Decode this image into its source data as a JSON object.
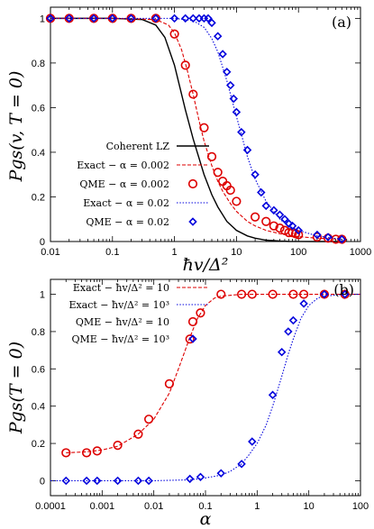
{
  "chart_data": [
    {
      "panel": "(a)",
      "type": "line",
      "xscale": "log",
      "xlim": [
        0.01,
        1000
      ],
      "ylim": [
        0,
        1.05
      ],
      "xticks": [
        0.01,
        0.1,
        1,
        10,
        100,
        1000
      ],
      "xtick_labels": [
        "0.01",
        "0.1",
        "1",
        "10",
        "100",
        "1000"
      ],
      "yticks": [
        0,
        0.2,
        0.4,
        0.6,
        0.8,
        1
      ],
      "ytick_labels": [
        "0",
        "0.2",
        "0.4",
        "0.6",
        "0.8",
        "1"
      ],
      "xlabel": "ħv/Δ²",
      "ylabel": "Pgs(v, T = 0)",
      "legend_position": "bottom-left",
      "series": [
        {
          "name": "Coherent LZ",
          "style": "line-solid",
          "color": "#000000",
          "x": [
            0.01,
            0.1,
            0.3,
            0.5,
            0.7,
            1,
            1.5,
            2,
            3,
            4,
            5,
            7,
            10,
            15,
            20,
            30,
            50,
            70,
            100,
            200,
            500
          ],
          "y": [
            1,
            1,
            0.995,
            0.97,
            0.915,
            0.79,
            0.59,
            0.46,
            0.3,
            0.21,
            0.155,
            0.09,
            0.05,
            0.025,
            0.015,
            0.006,
            0.002,
            0.0005,
            0.0002,
            0,
            0
          ]
        },
        {
          "name": "Exact − α = 0.002",
          "style": "line-dashed",
          "color": "#dd0000",
          "x": [
            0.01,
            0.1,
            0.5,
            0.8,
            1,
            1.3,
            1.6,
            2,
            2.5,
            3,
            4,
            5,
            6,
            8,
            10,
            15,
            20,
            30,
            50,
            70,
            100,
            200,
            500
          ],
          "y": [
            1,
            1,
            0.995,
            0.97,
            0.935,
            0.86,
            0.77,
            0.66,
            0.54,
            0.45,
            0.34,
            0.27,
            0.225,
            0.17,
            0.135,
            0.09,
            0.07,
            0.05,
            0.035,
            0.028,
            0.022,
            0.015,
            0.01
          ]
        },
        {
          "name": "QME − α = 0.002",
          "style": "marker-circle",
          "color": "#dd0000",
          "x": [
            0.01,
            0.02,
            0.05,
            0.1,
            0.2,
            0.5,
            1,
            1.5,
            2,
            3,
            4,
            5,
            6,
            7,
            8,
            10,
            20,
            30,
            40,
            50,
            60,
            70,
            80,
            90,
            100,
            200,
            300,
            400,
            500
          ],
          "y": [
            1,
            1,
            1,
            1,
            1,
            1,
            0.93,
            0.79,
            0.66,
            0.51,
            0.38,
            0.31,
            0.27,
            0.25,
            0.23,
            0.18,
            0.11,
            0.09,
            0.07,
            0.06,
            0.05,
            0.04,
            0.04,
            0.035,
            0.03,
            0.02,
            0.015,
            0.01,
            0.01
          ]
        },
        {
          "name": "Exact − α = 0.02",
          "style": "line-dotted",
          "color": "#0000dd",
          "x": [
            0.01,
            0.1,
            1,
            2,
            3,
            4,
            5,
            6,
            7,
            8,
            10,
            12,
            15,
            20,
            30,
            50,
            70,
            100,
            200,
            500
          ],
          "y": [
            1,
            1,
            1,
            0.99,
            0.96,
            0.91,
            0.85,
            0.78,
            0.72,
            0.66,
            0.56,
            0.48,
            0.38,
            0.28,
            0.18,
            0.1,
            0.07,
            0.05,
            0.025,
            0.01
          ]
        },
        {
          "name": "QME − α = 0.02",
          "style": "marker-diamond",
          "color": "#0000dd",
          "x": [
            0.01,
            0.02,
            0.05,
            0.1,
            0.2,
            0.5,
            1,
            1.5,
            2,
            2.5,
            3,
            3.5,
            4,
            5,
            6,
            7,
            8,
            9,
            10,
            12,
            15,
            20,
            25,
            30,
            40,
            50,
            60,
            70,
            80,
            100,
            200,
            300,
            500
          ],
          "y": [
            1,
            1,
            1,
            1,
            1,
            1,
            1,
            1,
            1,
            1,
            1,
            1,
            0.98,
            0.92,
            0.84,
            0.76,
            0.7,
            0.64,
            0.58,
            0.49,
            0.41,
            0.3,
            0.22,
            0.16,
            0.14,
            0.12,
            0.1,
            0.08,
            0.07,
            0.05,
            0.03,
            0.02,
            0.01
          ]
        }
      ]
    },
    {
      "panel": "(b)",
      "type": "line",
      "xscale": "log",
      "xlim": [
        0.0001,
        100
      ],
      "ylim": [
        -0.08,
        1.08
      ],
      "xticks": [
        0.0001,
        0.001,
        0.01,
        0.1,
        1,
        10,
        100
      ],
      "xtick_labels": [
        "0.0001",
        "0.001",
        "0.01",
        "0.1",
        "1",
        "10",
        "100"
      ],
      "yticks": [
        0,
        0.2,
        0.4,
        0.6,
        0.8,
        1
      ],
      "ytick_labels": [
        "0",
        "0.2",
        "0.4",
        "0.6",
        "0.8",
        "1"
      ],
      "xlabel": "α",
      "ylabel": "Pgs(T = 0)",
      "legend_position": "top-left",
      "series": [
        {
          "name": "Exact − ħv/Δ² = 10",
          "style": "line-dashed",
          "color": "#dd0000",
          "x": [
            0.0002,
            0.0005,
            0.001,
            0.002,
            0.005,
            0.01,
            0.02,
            0.03,
            0.05,
            0.07,
            0.1,
            0.15,
            0.2,
            0.5,
            1,
            10,
            100
          ],
          "y": [
            0.15,
            0.155,
            0.165,
            0.185,
            0.25,
            0.33,
            0.47,
            0.6,
            0.77,
            0.87,
            0.94,
            0.98,
            0.99,
            1,
            1,
            1,
            1
          ]
        },
        {
          "name": "Exact − ħv/Δ² = 10³",
          "style": "line-dotted",
          "color": "#0000dd",
          "x": [
            0.0001,
            0.001,
            0.01,
            0.05,
            0.1,
            0.2,
            0.3,
            0.5,
            0.7,
            1,
            1.5,
            2,
            3,
            4,
            5,
            7,
            10,
            15,
            20,
            50,
            100
          ],
          "y": [
            0,
            0,
            0,
            0.005,
            0.015,
            0.03,
            0.05,
            0.09,
            0.14,
            0.2,
            0.3,
            0.4,
            0.56,
            0.68,
            0.76,
            0.87,
            0.94,
            0.98,
            0.99,
            1,
            1
          ]
        },
        {
          "name": "QME − ħv/Δ² = 10",
          "style": "marker-circle",
          "color": "#dd0000",
          "x": [
            0.0002,
            0.0005,
            0.0008,
            0.002,
            0.005,
            0.008,
            0.02,
            0.05,
            0.08,
            0.2,
            0.5,
            0.8,
            2,
            5,
            8,
            20,
            50
          ],
          "y": [
            0.15,
            0.15,
            0.16,
            0.19,
            0.25,
            0.33,
            0.52,
            0.76,
            0.9,
            1,
            1,
            1,
            1,
            1,
            1,
            1,
            1
          ]
        },
        {
          "name": "QME − ħv/Δ² = 10³",
          "style": "marker-diamond",
          "color": "#0000dd",
          "x": [
            0.0002,
            0.0005,
            0.0008,
            0.002,
            0.005,
            0.008,
            0.05,
            0.08,
            0.2,
            0.5,
            0.8,
            2,
            3,
            4,
            5,
            8,
            20,
            50
          ],
          "y": [
            0,
            0,
            0,
            0,
            0,
            0,
            0.01,
            0.02,
            0.04,
            0.09,
            0.21,
            0.46,
            0.69,
            0.8,
            0.86,
            0.95,
            1,
            1
          ]
        }
      ]
    }
  ]
}
